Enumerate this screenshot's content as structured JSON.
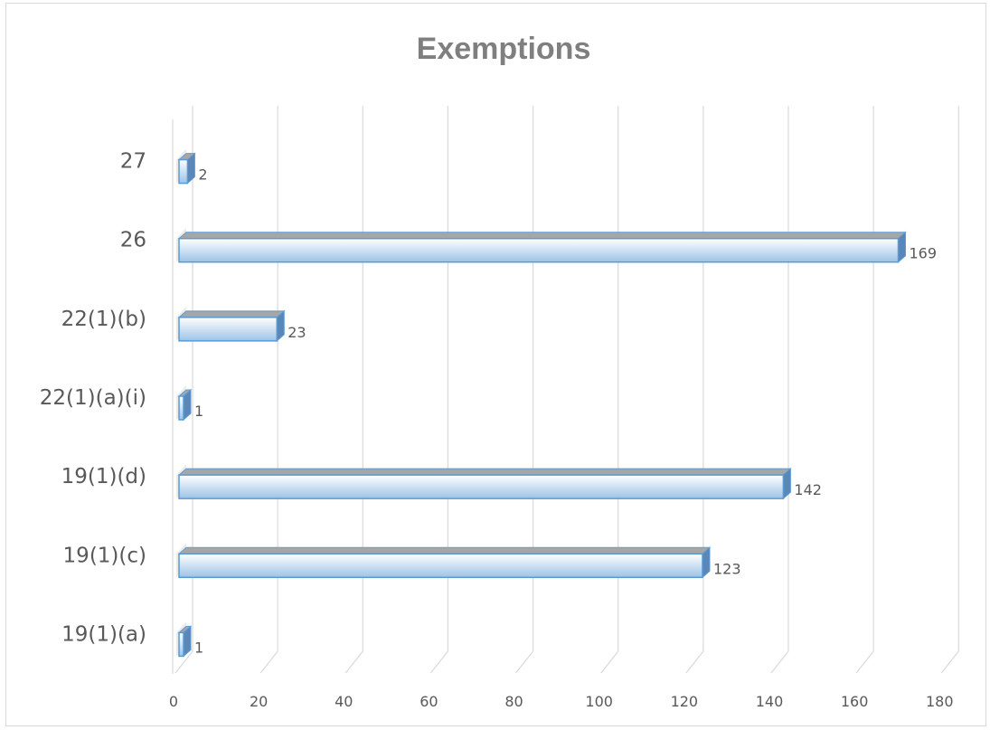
{
  "chart_data": {
    "type": "bar",
    "orientation": "horizontal",
    "style": "3d-clustered-bar",
    "title": "Exemptions",
    "xlabel": "",
    "ylabel": "",
    "categories": [
      "19(1)(a)",
      "19(1)(c)",
      "19(1)(d)",
      "22(1)(a)(i)",
      "22(1)(b)",
      "26",
      "27"
    ],
    "values": [
      1,
      123,
      142,
      1,
      23,
      169,
      2
    ],
    "data_labels": [
      "1",
      "123",
      "142",
      "1",
      "23",
      "169",
      "2"
    ],
    "xlim": [
      0,
      180
    ],
    "x_ticks": [
      "0",
      "20",
      "40",
      "60",
      "80",
      "100",
      "120",
      "140",
      "160",
      "180"
    ],
    "grid": true,
    "legend": "none",
    "colors": {
      "bar_fill_light": "#ffffff",
      "bar_fill_dark": "#9dc3e6",
      "bar_edge": "#5b9bd5",
      "bar_top": "#a6a6a6",
      "bar_side": "#5b86b8"
    }
  }
}
